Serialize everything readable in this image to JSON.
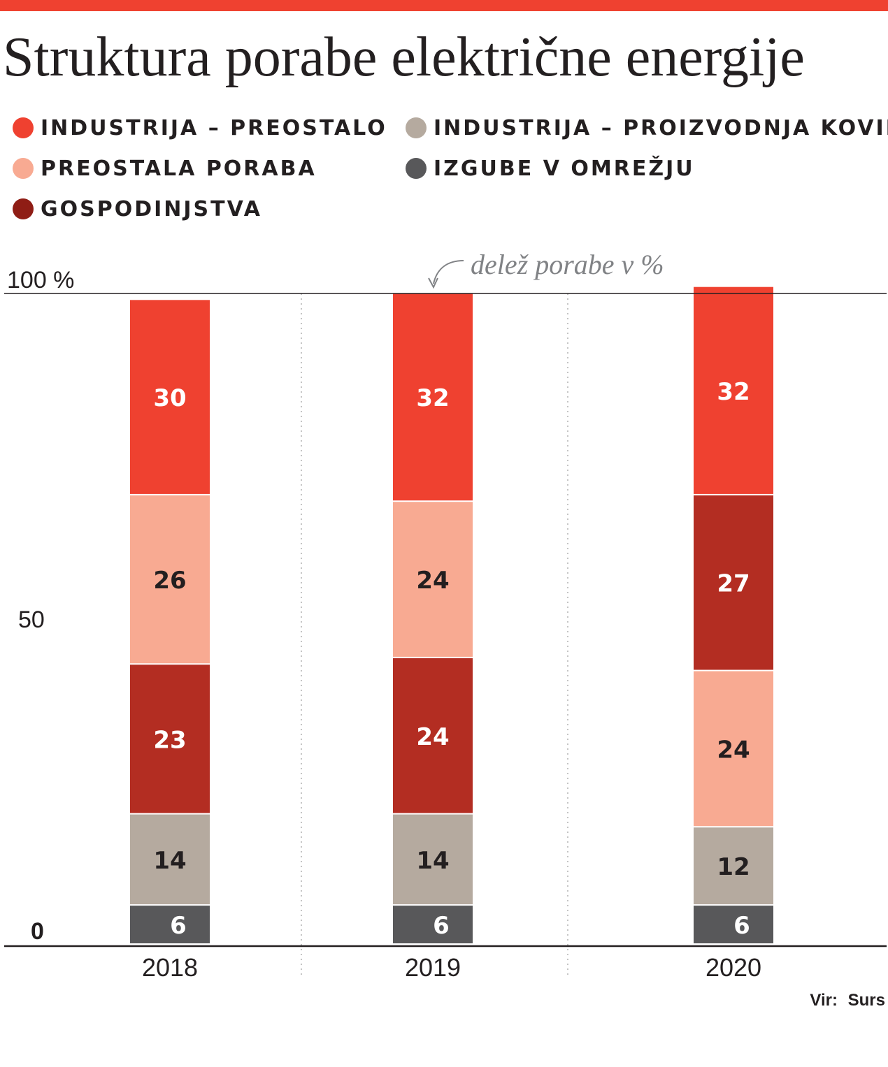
{
  "title": "Struktura porabe električne energije",
  "source": {
    "label": "Vir:",
    "value": "Surs"
  },
  "annotation": "delež porabe v %",
  "legend": [
    {
      "label": "INDUSTRIJA – PREOSTALO",
      "color": "#ef4130"
    },
    {
      "label": "INDUSTRIJA – PROIZVODNJA KOVIN",
      "color": "#b5aa9f"
    },
    {
      "label": "PREOSTALA PORABA",
      "color": "#f8aa92"
    },
    {
      "label": "IZGUBE V OMREŽJU",
      "color": "#58585a"
    },
    {
      "label": "GOSPODINJSTVA",
      "color": "#8f1d15"
    }
  ],
  "chart_data": {
    "type": "bar",
    "stacked": true,
    "title": "Struktura porabe električne energije",
    "ylabel": "delež porabe v %",
    "ylim": [
      0,
      100
    ],
    "y_ticks": [
      {
        "value": 0,
        "label": "0"
      },
      {
        "value": 50,
        "label": "50"
      },
      {
        "value": 100,
        "label": "100 %"
      }
    ],
    "categories": [
      "2018",
      "2019",
      "2020"
    ],
    "bars": [
      {
        "category": "2018",
        "segments": [
          {
            "series": "IZGUBE V OMREŽJU",
            "value": 6,
            "color": "#58585a",
            "text_color": "#ffffff"
          },
          {
            "series": "INDUSTRIJA – PROIZVODNJA KOVIN",
            "value": 14,
            "color": "#b5aa9f",
            "text_color": "#231f20"
          },
          {
            "series": "GOSPODINJSTVA",
            "value": 23,
            "color": "#b32d22",
            "text_color": "#ffffff"
          },
          {
            "series": "PREOSTALA PORABA",
            "value": 26,
            "color": "#f8aa92",
            "text_color": "#231f20"
          },
          {
            "series": "INDUSTRIJA – PREOSTALO",
            "value": 30,
            "color": "#ef4130",
            "text_color": "#ffffff"
          }
        ]
      },
      {
        "category": "2019",
        "segments": [
          {
            "series": "IZGUBE V OMREŽJU",
            "value": 6,
            "color": "#58585a",
            "text_color": "#ffffff"
          },
          {
            "series": "INDUSTRIJA – PROIZVODNJA KOVIN",
            "value": 14,
            "color": "#b5aa9f",
            "text_color": "#231f20"
          },
          {
            "series": "GOSPODINJSTVA",
            "value": 24,
            "color": "#b32d22",
            "text_color": "#ffffff"
          },
          {
            "series": "PREOSTALA PORABA",
            "value": 24,
            "color": "#f8aa92",
            "text_color": "#231f20"
          },
          {
            "series": "INDUSTRIJA – PREOSTALO",
            "value": 32,
            "color": "#ef4130",
            "text_color": "#ffffff"
          }
        ]
      },
      {
        "category": "2020",
        "segments": [
          {
            "series": "IZGUBE V OMREŽJU",
            "value": 6,
            "color": "#58585a",
            "text_color": "#ffffff"
          },
          {
            "series": "INDUSTRIJA – PROIZVODNJA KOVIN",
            "value": 12,
            "color": "#b5aa9f",
            "text_color": "#231f20"
          },
          {
            "series": "PREOSTALA PORABA",
            "value": 24,
            "color": "#f8aa92",
            "text_color": "#231f20"
          },
          {
            "series": "GOSPODINJSTVA",
            "value": 27,
            "color": "#b32d22",
            "text_color": "#ffffff"
          },
          {
            "series": "INDUSTRIJA – PREOSTALO",
            "value": 32,
            "color": "#ef4130",
            "text_color": "#ffffff"
          }
        ]
      }
    ],
    "grid": false,
    "legend_position": "top"
  }
}
